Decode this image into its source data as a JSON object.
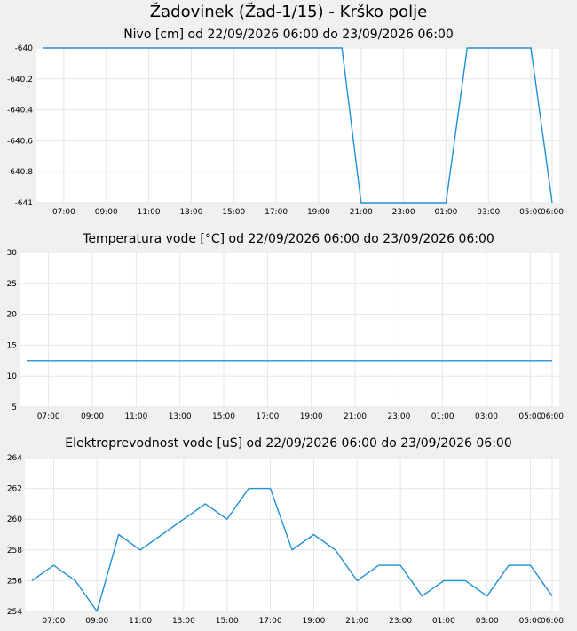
{
  "page": {
    "title": "Žadovinek (Žad-1/15) - Krško polje"
  },
  "colors": {
    "background": "#f0f0f0",
    "plot_background": "#ffffff",
    "grid": "#e6e6e6",
    "series": "#1f8fd6"
  },
  "chart_data": [
    {
      "type": "line",
      "title": "Nivo [cm] od 22/09/2026 06:00 do 23/09/2026 06:00",
      "x_ticks": [
        "07:00",
        "09:00",
        "11:00",
        "13:00",
        "15:00",
        "17:00",
        "19:00",
        "21:00",
        "23:00",
        "01:00",
        "03:00",
        "05:00",
        "06:00"
      ],
      "x_tick_hours": [
        1,
        3,
        5,
        7,
        9,
        11,
        13,
        15,
        17,
        19,
        21,
        23,
        24
      ],
      "y_ticks": [
        "-640",
        "-640.2",
        "-640.4",
        "-640.6",
        "-640.8",
        "-641"
      ],
      "y_tick_values": [
        -640,
        -640.2,
        -640.4,
        -640.6,
        -640.8,
        -641
      ],
      "ylim": [
        -641,
        -640
      ],
      "xlim": [
        0,
        24
      ],
      "grid": true,
      "series": [
        {
          "x": [
            0,
            14.1,
            15.0,
            19.0,
            20.0,
            23.0,
            24.0
          ],
          "y": [
            -640,
            -640,
            -641,
            -641,
            -640,
            -640,
            -641
          ]
        }
      ]
    },
    {
      "type": "line",
      "title": "Temperatura vode [°C] od 22/09/2026 06:00 do 23/09/2026 06:00",
      "x_ticks": [
        "07:00",
        "09:00",
        "11:00",
        "13:00",
        "15:00",
        "17:00",
        "19:00",
        "21:00",
        "23:00",
        "01:00",
        "03:00",
        "05:00",
        "06:00"
      ],
      "x_tick_hours": [
        1,
        3,
        5,
        7,
        9,
        11,
        13,
        15,
        17,
        19,
        21,
        23,
        24
      ],
      "y_ticks": [
        "30",
        "25",
        "20",
        "15",
        "10",
        "5"
      ],
      "y_tick_values": [
        30,
        25,
        20,
        15,
        10,
        5
      ],
      "ylim": [
        5,
        30
      ],
      "xlim": [
        0,
        24
      ],
      "grid": true,
      "series": [
        {
          "x": [
            0,
            24
          ],
          "y": [
            12.5,
            12.5
          ]
        }
      ]
    },
    {
      "type": "line",
      "title": "Elektroprevodnost vode [uS] od 22/09/2026 06:00 do 23/09/2026 06:00",
      "x_ticks": [
        "07:00",
        "09:00",
        "11:00",
        "13:00",
        "15:00",
        "17:00",
        "19:00",
        "21:00",
        "23:00",
        "01:00",
        "03:00",
        "05:00",
        "06:00"
      ],
      "x_tick_hours": [
        1,
        3,
        5,
        7,
        9,
        11,
        13,
        15,
        17,
        19,
        21,
        23,
        24
      ],
      "y_ticks": [
        "264",
        "262",
        "260",
        "258",
        "256",
        "254"
      ],
      "y_tick_values": [
        264,
        262,
        260,
        258,
        256,
        254
      ],
      "ylim": [
        254,
        264
      ],
      "xlim": [
        0,
        24
      ],
      "grid": true,
      "series": [
        {
          "x": [
            0,
            1,
            2,
            3,
            4,
            5,
            6,
            7,
            8,
            9,
            10,
            11,
            12,
            13,
            14,
            15,
            16,
            17,
            18,
            19,
            20,
            21,
            22,
            23,
            24
          ],
          "y": [
            256,
            257,
            256,
            254,
            259,
            258,
            259,
            260,
            261,
            260,
            262,
            262,
            258,
            259,
            258,
            256,
            257,
            257,
            255,
            256,
            256,
            255,
            257,
            257,
            255
          ]
        }
      ]
    }
  ]
}
